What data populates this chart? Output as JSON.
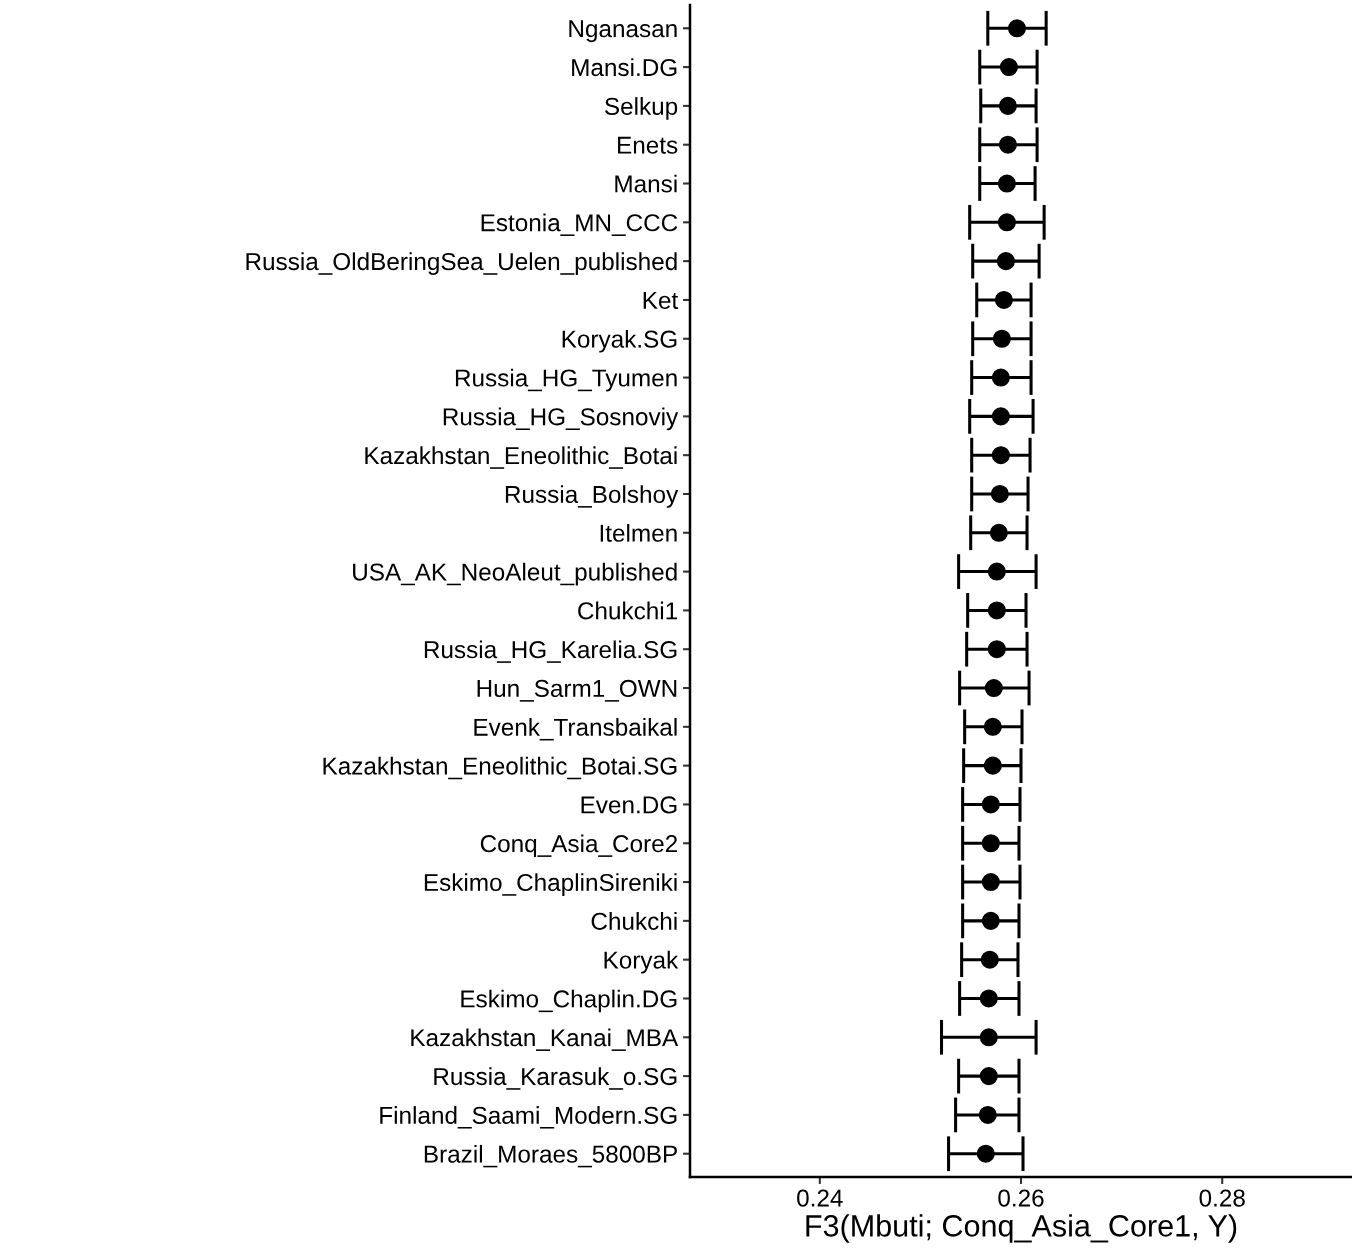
{
  "chart_data": {
    "type": "scatter",
    "orientation": "horizontal",
    "xlabel": "F3(Mbuti; Conq_Asia_Core1, Y)",
    "categories": [
      "Nganasan",
      "Mansi.DG",
      "Selkup",
      "Enets",
      "Mansi",
      "Estonia_MN_CCC",
      "Russia_OldBeringSea_Uelen_published",
      "Ket",
      "Koryak.SG",
      "Russia_HG_Tyumen",
      "Russia_HG_Sosnoviy",
      "Kazakhstan_Eneolithic_Botai",
      "Russia_Bolshoy",
      "Itelmen",
      "USA_AK_NeoAleut_published",
      "Chukchi1",
      "Russia_HG_Karelia.SG",
      "Hun_Sarm1_OWN",
      "Evenk_Transbaikal",
      "Kazakhstan_Eneolithic_Botai.SG",
      "Even.DG",
      "Conq_Asia_Core2",
      "Eskimo_ChaplinSireniki",
      "Chukchi",
      "Koryak",
      "Eskimo_Chaplin.DG",
      "Kazakhstan_Kanai_MBA",
      "Russia_Karasuk_o.SG",
      "Finland_Saami_Modern.SG",
      "Brazil_Moraes_5800BP"
    ],
    "values": [
      0.2596,
      0.2588,
      0.2587,
      0.2587,
      0.2586,
      0.2586,
      0.2585,
      0.2583,
      0.2581,
      0.258,
      0.258,
      0.258,
      0.2579,
      0.2578,
      0.2576,
      0.2576,
      0.2576,
      0.2573,
      0.2572,
      0.2572,
      0.257,
      0.257,
      0.257,
      0.257,
      0.2569,
      0.2568,
      0.2568,
      0.2568,
      0.2567,
      0.2565
    ],
    "errors": [
      [
        0.2567,
        0.2625
      ],
      [
        0.2559,
        0.2616
      ],
      [
        0.256,
        0.2615
      ],
      [
        0.2559,
        0.2616
      ],
      [
        0.2559,
        0.2614
      ],
      [
        0.2549,
        0.2623
      ],
      [
        0.2552,
        0.2618
      ],
      [
        0.2556,
        0.261
      ],
      [
        0.2552,
        0.261
      ],
      [
        0.2551,
        0.261
      ],
      [
        0.2549,
        0.2612
      ],
      [
        0.2551,
        0.2609
      ],
      [
        0.2551,
        0.2607
      ],
      [
        0.255,
        0.2606
      ],
      [
        0.2538,
        0.2615
      ],
      [
        0.2547,
        0.2605
      ],
      [
        0.2546,
        0.2606
      ],
      [
        0.2539,
        0.2608
      ],
      [
        0.2544,
        0.2601
      ],
      [
        0.2543,
        0.26
      ],
      [
        0.2542,
        0.2599
      ],
      [
        0.2542,
        0.2598
      ],
      [
        0.2542,
        0.2599
      ],
      [
        0.2542,
        0.2598
      ],
      [
        0.2541,
        0.2597
      ],
      [
        0.2539,
        0.2598
      ],
      [
        0.2521,
        0.2615
      ],
      [
        0.2538,
        0.2598
      ],
      [
        0.2535,
        0.2598
      ],
      [
        0.2528,
        0.2602
      ]
    ],
    "color": "#000000",
    "marker": "circle",
    "xlim": [
      0.2271,
      0.2929
    ],
    "xticks": [
      0.24,
      0.26,
      0.28
    ]
  }
}
